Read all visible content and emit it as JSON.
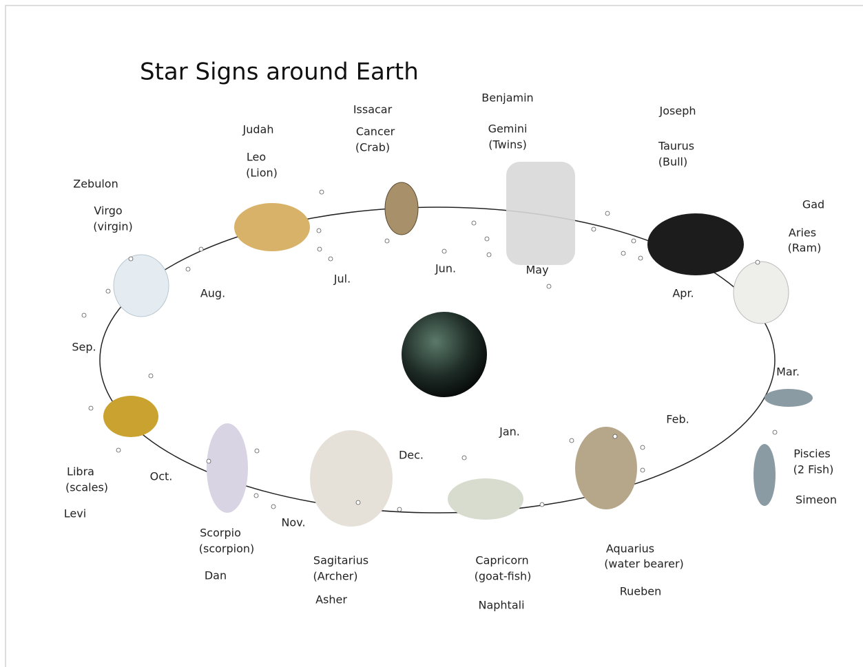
{
  "title": "Star Signs around Earth",
  "signs": [
    {
      "sign": "Cancer",
      "description": "(Crab)",
      "tribe": "Issacar"
    },
    {
      "sign": "Gemini",
      "description": "(Twins)",
      "tribe": "Benjamin"
    },
    {
      "sign": "Taurus",
      "description": "(Bull)",
      "tribe": "Joseph"
    },
    {
      "sign": "Aries",
      "description": "(Ram)",
      "tribe": "Gad"
    },
    {
      "sign": "Leo",
      "description": "(Lion)",
      "tribe": "Judah"
    },
    {
      "sign": "Virgo",
      "description": "(virgin)",
      "tribe": "Zebulon"
    },
    {
      "sign": "Piscies",
      "description": "(2 Fish)",
      "tribe": "Simeon"
    },
    {
      "sign": "Aquarius",
      "description": "(water bearer)",
      "tribe": "Rueben"
    },
    {
      "sign": "Capricorn",
      "description": "(goat-fish)",
      "tribe": "Naphtali"
    },
    {
      "sign": "Sagitarius",
      "description": "(Archer)",
      "tribe": "Asher"
    },
    {
      "sign": "Scorpio",
      "description": "(scorpion)",
      "tribe": "Dan"
    },
    {
      "sign": "Libra",
      "description": "(scales)",
      "tribe": "Levi"
    }
  ],
  "months": [
    "Jan.",
    "Feb.",
    "Mar.",
    "Apr.",
    "May",
    "Jun.",
    "Jul.",
    "Aug.",
    "Sep.",
    "Oct.",
    "Nov.",
    "Dec."
  ]
}
